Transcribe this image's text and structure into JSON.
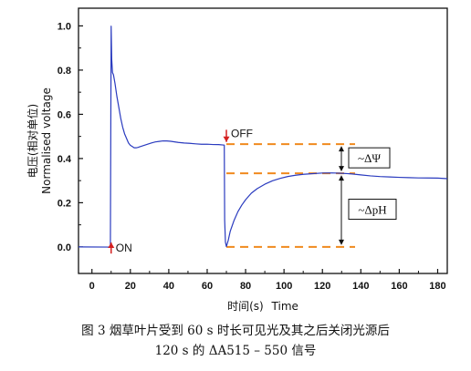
{
  "chart_data": {
    "type": "line",
    "xlabel_cn": "时间(s)",
    "xlabel_en": "Time",
    "ylabel_cn": "电压(相对单位)",
    "ylabel_en": "Normalised voltage",
    "xlim": [
      -7,
      185
    ],
    "ylim": [
      -0.12,
      1.08
    ],
    "x_ticks": [
      0,
      20,
      40,
      60,
      80,
      100,
      120,
      140,
      160,
      180
    ],
    "y_ticks": [
      0.0,
      0.2,
      0.4,
      0.6,
      0.8,
      1.0
    ],
    "x_tick_labels": [
      "0",
      "20",
      "40",
      "60",
      "80",
      "100",
      "120",
      "140",
      "160",
      "180"
    ],
    "y_tick_labels": [
      "0.0",
      "0.2",
      "0.4",
      "0.6",
      "0.8",
      "1.0"
    ],
    "series": [
      {
        "color": "#2a3bbf",
        "x": [
          -7,
          9.6,
          9.8,
          10,
          10.3,
          10.7,
          11.2,
          12,
          13,
          14,
          15,
          16,
          17,
          18,
          19,
          20,
          21,
          22,
          23,
          24,
          25,
          27,
          29,
          31,
          33,
          35,
          37,
          39,
          41,
          43,
          45,
          48,
          51,
          54,
          57,
          60,
          63,
          66,
          68.9,
          69.1,
          69.5,
          70,
          71,
          72,
          74,
          76,
          78,
          80,
          83,
          86,
          90,
          94,
          98,
          102,
          106,
          110,
          115,
          120,
          125,
          130,
          135,
          140,
          145,
          150,
          155,
          160,
          165,
          170,
          175,
          180,
          185
        ],
        "y": [
          0.0,
          0.0,
          0.5,
          1.0,
          0.85,
          0.79,
          0.78,
          0.74,
          0.68,
          0.63,
          0.58,
          0.54,
          0.51,
          0.49,
          0.47,
          0.46,
          0.455,
          0.45,
          0.45,
          0.452,
          0.455,
          0.46,
          0.465,
          0.47,
          0.474,
          0.476,
          0.478,
          0.478,
          0.477,
          0.475,
          0.473,
          0.471,
          0.47,
          0.468,
          0.466,
          0.466,
          0.464,
          0.463,
          0.46,
          0.12,
          0.02,
          0.0,
          0.03,
          0.07,
          0.12,
          0.16,
          0.19,
          0.215,
          0.245,
          0.265,
          0.285,
          0.3,
          0.31,
          0.318,
          0.323,
          0.327,
          0.33,
          0.333,
          0.334,
          0.333,
          0.331,
          0.327,
          0.323,
          0.32,
          0.318,
          0.316,
          0.314,
          0.312,
          0.311,
          0.31,
          0.309
        ]
      }
    ],
    "annotations": [
      {
        "text": "ON",
        "arrow_x": 10,
        "arrow_from_y": -0.03,
        "arrow_to_y": 0.02
      },
      {
        "text": "OFF",
        "arrow_x": 70,
        "arrow_from_y": 0.53,
        "arrow_to_y": 0.475
      }
    ],
    "reference_lines": [
      {
        "y": 0.465,
        "x_start": 70,
        "x_end": 137
      },
      {
        "y": 0.333,
        "x_start": 70,
        "x_end": 137
      },
      {
        "y": 0.0,
        "x_start": 70,
        "x_end": 137
      }
    ],
    "brackets": [
      {
        "label": "~ΔΨ",
        "x": 131,
        "y_top": 0.465,
        "y_bottom": 0.333
      },
      {
        "label": "~ΔpH",
        "x": 131,
        "y_top": 0.333,
        "y_bottom": 0.0
      }
    ],
    "colors": {
      "line": "#2a3bbf",
      "dashed": "#f08a1e",
      "arrow": "#d42020",
      "axis": "#111111"
    }
  },
  "caption": {
    "line1": "图 3 烟草叶片受到 60 s 时长可见光及其之后关闭光源后",
    "line2": "120 s 的 ΔA515 – 550 信号"
  }
}
